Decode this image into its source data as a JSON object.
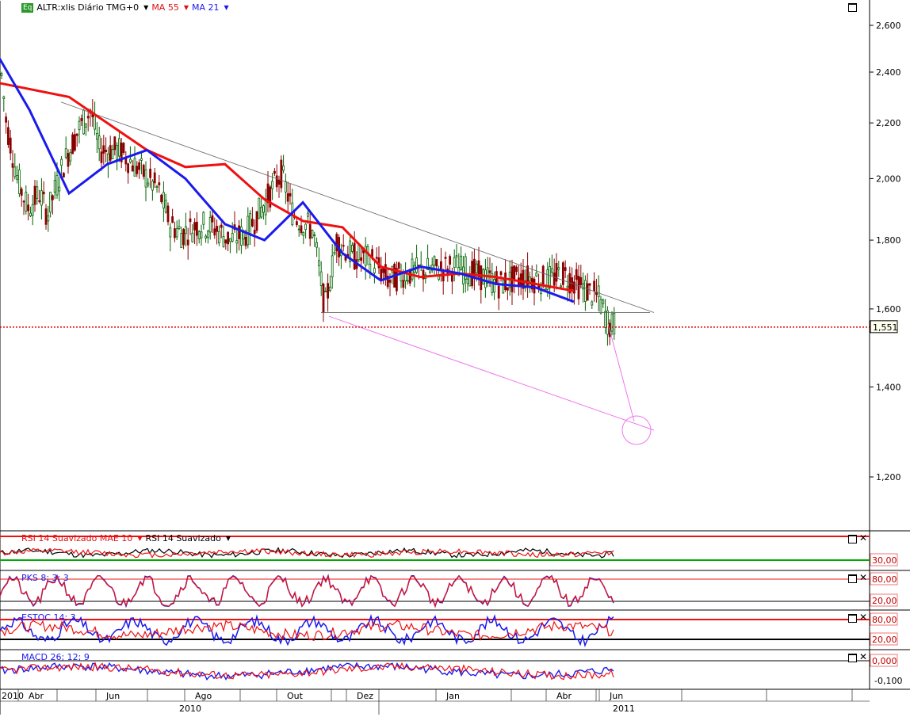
{
  "header": {
    "eq_label": "Eq",
    "symbol": "ALTR:xlis Diário TMG+0",
    "ma55_label": "MA 55",
    "ma21_label": "MA 21"
  },
  "colors": {
    "up": "#006400",
    "down": "#8b0000",
    "ma55": "#ee1111",
    "ma21": "#1a1aee",
    "trend": "#666666",
    "target": "#ee77ee"
  },
  "price_axis": {
    "ticks": [
      "2,600",
      "2,400",
      "2,200",
      "2,000",
      "1,800",
      "1,600",
      "1,400",
      "1,200"
    ],
    "current_label": "1,551"
  },
  "panels": [
    {
      "title": "RSI 14 Suavizado MAE 10",
      "title2": "RSI 14 Suavizado",
      "levels": [
        "30,00"
      ]
    },
    {
      "title": "PKS 8; 3; 3",
      "levels": [
        "80,00",
        "20,00"
      ]
    },
    {
      "title": "ESTOC 14; 3",
      "levels": [
        "80,00",
        "20,00"
      ]
    },
    {
      "title": "MACD 26; 12; 9",
      "levels": [
        "0,000",
        "-0,100"
      ]
    }
  ],
  "time_axis": {
    "months": [
      "2010",
      "Abr",
      "Jun",
      "Ago",
      "Out",
      "Dez",
      "Jan",
      "Abr",
      "Jun"
    ],
    "years": [
      "2010",
      "2011"
    ]
  },
  "chart_data": {
    "type": "candlestick",
    "y_scale": "log",
    "y_range": [
      1.07,
      2.7
    ],
    "current_price": 1.551,
    "series": [
      {
        "name": "MA 55",
        "points": [
          [
            "2010-02",
            2.36
          ],
          [
            "2010-04",
            2.3
          ],
          [
            "2010-06",
            2.1
          ],
          [
            "2010-07",
            2.04
          ],
          [
            "2010-08",
            2.05
          ],
          [
            "2010-09",
            1.93
          ],
          [
            "2010-10",
            1.86
          ],
          [
            "2010-11",
            1.84
          ],
          [
            "2010-12",
            1.72
          ],
          [
            "2011-01",
            1.69
          ],
          [
            "2011-02",
            1.7
          ],
          [
            "2011-03",
            1.69
          ],
          [
            "2011-04",
            1.67
          ],
          [
            "2011-05",
            1.65
          ]
        ]
      },
      {
        "name": "MA 21",
        "points": [
          [
            "2010-02",
            2.5
          ],
          [
            "2010-03",
            2.25
          ],
          [
            "2010-04",
            1.95
          ],
          [
            "2010-05",
            2.05
          ],
          [
            "2010-06",
            2.1
          ],
          [
            "2010-07",
            2.0
          ],
          [
            "2010-08",
            1.85
          ],
          [
            "2010-09",
            1.8
          ],
          [
            "2010-10",
            1.92
          ],
          [
            "2010-11",
            1.76
          ],
          [
            "2010-12",
            1.68
          ],
          [
            "2011-01",
            1.72
          ],
          [
            "2011-02",
            1.7
          ],
          [
            "2011-03",
            1.67
          ],
          [
            "2011-04",
            1.66
          ],
          [
            "2011-05",
            1.62
          ]
        ]
      }
    ],
    "trendlines": [
      {
        "from": [
          "2010-03",
          2.28
        ],
        "to": [
          "2011-06",
          1.59
        ]
      },
      {
        "from": [
          "2010-11",
          1.59
        ],
        "to": [
          "2011-06",
          1.59
        ]
      },
      {
        "from": [
          "2010-11",
          1.58
        ],
        "to": [
          "2011-06",
          1.3
        ]
      },
      {
        "from": [
          "2011-05",
          1.56
        ],
        "to": [
          "2011-06",
          1.32
        ]
      }
    ],
    "price_line": 1.551,
    "candles": []
  }
}
